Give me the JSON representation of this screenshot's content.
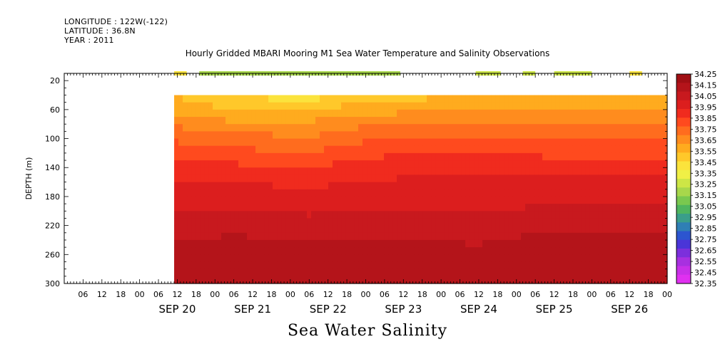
{
  "header": {
    "longitude": "LONGITUDE : 122W(-122)",
    "latitude": "LATITUDE : 36.8N",
    "year": "YEAR : 2011",
    "title": "Hourly Gridded MBARI Mooring M1 Sea Water Temperature and Salinity Observations"
  },
  "footer": {
    "variable_title": "Sea Water Salinity"
  },
  "chart_data": {
    "type": "heatmap",
    "title": "Hourly Gridded MBARI Mooring M1 Sea Water Temperature and Salinity Observations",
    "xlabel": "",
    "ylabel": "DEPTH (m)",
    "variable": "Sea Water Salinity",
    "x_range": [
      "2011-09-19T00:00",
      "2011-09-27T00:00"
    ],
    "y_range": [
      300,
      10
    ],
    "y_ticks": [
      20,
      60,
      100,
      140,
      180,
      220,
      260,
      300
    ],
    "x_hour_ticks": [
      "06",
      "12",
      "18",
      "00",
      "06",
      "12",
      "18",
      "00",
      "06",
      "12",
      "18",
      "00",
      "06",
      "12",
      "18",
      "00",
      "06",
      "12",
      "18",
      "00",
      "06",
      "12",
      "18",
      "00",
      "06",
      "12",
      "18",
      "00",
      "06",
      "12",
      "18",
      "00"
    ],
    "x_day_labels": [
      "SEP 20",
      "SEP 21",
      "SEP 22",
      "SEP 23",
      "SEP 24",
      "SEP 25",
      "SEP 26"
    ],
    "data_start": "2011-09-20T11:00",
    "surface_depth_m": 10,
    "upper_data_depth_m": 40,
    "surface_bands": [
      {
        "start": "2011-09-20T11:00",
        "end": "2011-09-20T15:00",
        "salinity": 33.4
      },
      {
        "start": "2011-09-20T19:00",
        "end": "2011-09-23T11:00",
        "salinity": 33.2
      },
      {
        "start": "2011-09-24T11:00",
        "end": "2011-09-24T19:00",
        "salinity": 33.3
      },
      {
        "start": "2011-09-25T02:00",
        "end": "2011-09-25T06:00",
        "salinity": 33.3
      },
      {
        "start": "2011-09-25T12:00",
        "end": "2011-09-26T00:00",
        "salinity": 33.3
      },
      {
        "start": "2011-09-26T12:00",
        "end": "2011-09-26T16:00",
        "salinity": 33.4
      }
    ],
    "profile_depths_m": [
      40,
      60,
      80,
      100,
      120,
      140,
      160,
      180,
      200,
      220,
      240,
      260,
      280,
      300
    ],
    "profiles": [
      {
        "time": "2011-09-20T11:00",
        "salinity": [
          33.55,
          33.6,
          33.7,
          33.78,
          33.85,
          33.92,
          33.96,
          34.0,
          34.04,
          34.08,
          34.12,
          34.15,
          34.17,
          34.18
        ]
      },
      {
        "time": "2011-09-21T06:00",
        "salinity": [
          33.45,
          33.55,
          33.65,
          33.75,
          33.82,
          33.9,
          33.96,
          34.0,
          34.05,
          34.1,
          34.14,
          34.17,
          34.18,
          34.18
        ]
      },
      {
        "time": "2011-09-22T06:00",
        "salinity": [
          33.42,
          33.55,
          33.65,
          33.72,
          33.8,
          33.88,
          33.94,
          33.99,
          34.03,
          34.08,
          34.12,
          34.16,
          34.17,
          34.18
        ]
      },
      {
        "time": "2011-09-23T00:00",
        "salinity": [
          33.5,
          33.6,
          33.7,
          33.78,
          33.86,
          33.92,
          33.97,
          34.01,
          34.05,
          34.1,
          34.13,
          34.15,
          34.16,
          34.17
        ]
      },
      {
        "time": "2011-09-24T12:00",
        "salinity": [
          33.55,
          33.62,
          33.72,
          33.82,
          33.88,
          33.94,
          33.98,
          34.01,
          34.04,
          34.08,
          34.12,
          34.14,
          34.15,
          34.16
        ]
      },
      {
        "time": "2011-09-25T12:00",
        "salinity": [
          33.55,
          33.62,
          33.7,
          33.78,
          33.86,
          33.92,
          33.98,
          34.02,
          34.06,
          34.1,
          34.15,
          34.18,
          34.18,
          34.17
        ]
      },
      {
        "time": "2011-09-26T12:00",
        "salinity": [
          33.55,
          33.63,
          33.7,
          33.78,
          33.86,
          33.93,
          33.98,
          34.03,
          34.07,
          34.11,
          34.15,
          34.17,
          34.18,
          34.18
        ]
      }
    ],
    "colorbar": {
      "labels": [
        "34.25",
        "34.15",
        "34.05",
        "33.95",
        "33.85",
        "33.75",
        "33.65",
        "33.55",
        "33.45",
        "33.35",
        "33.25",
        "33.15",
        "33.05",
        "32.95",
        "32.85",
        "32.75",
        "32.65",
        "32.55",
        "32.45",
        "32.35"
      ],
      "colors": [
        "#a00f14",
        "#b4141a",
        "#c8191e",
        "#dc1e1e",
        "#f02b1e",
        "#ff4a1e",
        "#ff6c1e",
        "#ff8c1e",
        "#ffab1e",
        "#ffc82a",
        "#fbe33c",
        "#f0f046",
        "#cde646",
        "#a8d74b",
        "#7ac84f",
        "#4fb55f",
        "#3a9e8a",
        "#2f7fb5",
        "#2c55d0",
        "#4a35d8",
        "#7c2fdc",
        "#a830e0",
        "#c830e8",
        "#e030f0"
      ]
    }
  }
}
